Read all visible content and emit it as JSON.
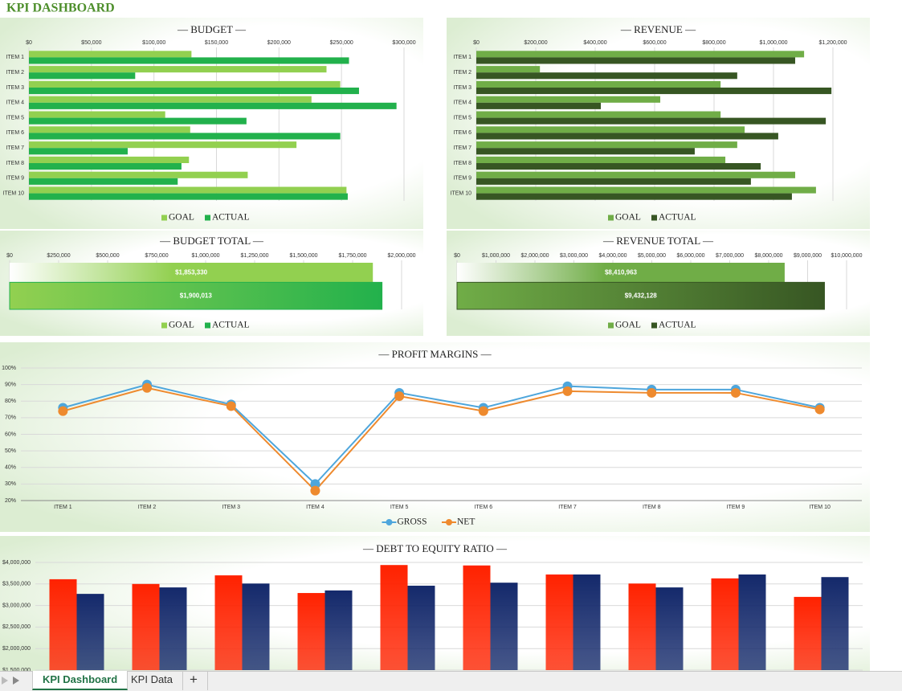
{
  "header": {
    "title": "KPI DASHBOARD"
  },
  "chart_data": [
    {
      "type": "hbar",
      "title": "— BUDGET —",
      "categories": [
        "ITEM 1",
        "ITEM 2",
        "ITEM 3",
        "ITEM 4",
        "ITEM 5",
        "ITEM 6",
        "ITEM 7",
        "ITEM 8",
        "ITEM 9",
        "ITEM 10"
      ],
      "series": [
        {
          "name": "GOAL",
          "color": "#92d050",
          "values": [
            130000,
            238000,
            249000,
            226000,
            109000,
            129000,
            214000,
            128000,
            175000,
            254000
          ]
        },
        {
          "name": "ACTUAL",
          "color": "#22b14c",
          "values": [
            256000,
            85000,
            264000,
            294000,
            174000,
            249000,
            79000,
            122000,
            119000,
            255000
          ]
        }
      ],
      "xlim": [
        0,
        300000
      ],
      "xticks": [
        {
          "value": 0,
          "label": "$0"
        },
        {
          "value": 50000,
          "label": "$50,000"
        },
        {
          "value": 100000,
          "label": "$100,000"
        },
        {
          "value": 150000,
          "label": "$150,000"
        },
        {
          "value": 200000,
          "label": "$200,000"
        },
        {
          "value": 250000,
          "label": "$250,000"
        },
        {
          "value": 300000,
          "label": "$300,000"
        }
      ],
      "grid": true,
      "legend": "bottom"
    },
    {
      "type": "hbar",
      "title": "— REVENUE —",
      "categories": [
        "ITEM 1",
        "ITEM 2",
        "ITEM 3",
        "ITEM 4",
        "ITEM 5",
        "ITEM 6",
        "ITEM 7",
        "ITEM 8",
        "ITEM 9",
        "ITEM 10"
      ],
      "series": [
        {
          "name": "GOAL",
          "color": "#70ad47",
          "values": [
            1103000,
            214000,
            822000,
            619000,
            822000,
            903000,
            878000,
            838000,
            1073000,
            1143000
          ]
        },
        {
          "name": "ACTUAL",
          "color": "#375623",
          "values": [
            1073000,
            878000,
            1195000,
            419000,
            1176000,
            1016000,
            735000,
            957000,
            924000,
            1062000
          ]
        }
      ],
      "xlim": [
        0,
        1200000
      ],
      "xticks": [
        {
          "value": 0,
          "label": "$0"
        },
        {
          "value": 200000,
          "label": "$200,000"
        },
        {
          "value": 400000,
          "label": "$400,000"
        },
        {
          "value": 600000,
          "label": "$600,000"
        },
        {
          "value": 800000,
          "label": "$800,000"
        },
        {
          "value": 1000000,
          "label": "$1,000,000"
        },
        {
          "value": 1200000,
          "label": "$1,200,000"
        }
      ],
      "grid": true,
      "legend": "bottom"
    },
    {
      "type": "total",
      "title": "— BUDGET TOTAL —",
      "series": [
        {
          "name": "GOAL",
          "color": "#92d050",
          "values": [
            1853330
          ],
          "value_labels": [
            "$1,853,330"
          ]
        },
        {
          "name": "ACTUAL",
          "color": "#22b14c",
          "values": [
            1900013
          ],
          "value_labels": [
            "$1,900,013"
          ]
        }
      ],
      "xlim": [
        0,
        2000000
      ],
      "xticks": [
        {
          "value": 0,
          "label": "$0"
        },
        {
          "value": 250000,
          "label": "$250,000"
        },
        {
          "value": 500000,
          "label": "$500,000"
        },
        {
          "value": 750000,
          "label": "$750,000"
        },
        {
          "value": 1000000,
          "label": "$1,000,000"
        },
        {
          "value": 1250000,
          "label": "$1,250,000"
        },
        {
          "value": 1500000,
          "label": "$1,500,000"
        },
        {
          "value": 1750000,
          "label": "$1,750,000"
        },
        {
          "value": 2000000,
          "label": "$2,000,000"
        }
      ],
      "legend": "bottom"
    },
    {
      "type": "total",
      "title": "— REVENUE TOTAL —",
      "series": [
        {
          "name": "GOAL",
          "color": "#70ad47",
          "values": [
            8410963
          ],
          "value_labels": [
            "$8,410,963"
          ]
        },
        {
          "name": "ACTUAL",
          "color": "#375623",
          "values": [
            9432128
          ],
          "value_labels": [
            "$9,432,128"
          ]
        }
      ],
      "xlim": [
        0,
        10000000
      ],
      "xticks": [
        {
          "value": 0,
          "label": "$0"
        },
        {
          "value": 1000000,
          "label": "$1,000,000"
        },
        {
          "value": 2000000,
          "label": "$2,000,000"
        },
        {
          "value": 3000000,
          "label": "$3,000,000"
        },
        {
          "value": 4000000,
          "label": "$4,000,000"
        },
        {
          "value": 5000000,
          "label": "$5,000,000"
        },
        {
          "value": 6000000,
          "label": "$6,000,000"
        },
        {
          "value": 7000000,
          "label": "$7,000,000"
        },
        {
          "value": 8000000,
          "label": "$8,000,000"
        },
        {
          "value": 9000000,
          "label": "$9,000,000"
        },
        {
          "value": 10000000,
          "label": "$10,000,000"
        }
      ],
      "legend": "bottom"
    },
    {
      "type": "line",
      "title": "— PROFIT MARGINS —",
      "categories": [
        "ITEM 1",
        "ITEM 2",
        "ITEM 3",
        "ITEM 4",
        "ITEM 5",
        "ITEM 6",
        "ITEM 7",
        "ITEM 8",
        "ITEM 9",
        "ITEM 10"
      ],
      "series": [
        {
          "name": "GROSS",
          "color": "#4ea6dc",
          "values": [
            76,
            90,
            78,
            30,
            85,
            76,
            89,
            87,
            87,
            76
          ]
        },
        {
          "name": "NET",
          "color": "#ee8a2e",
          "values": [
            74,
            88,
            77,
            26,
            83,
            74,
            86,
            85,
            85,
            75
          ]
        }
      ],
      "ylim": [
        20,
        100
      ],
      "yticks": [
        {
          "value": 20,
          "label": "20%"
        },
        {
          "value": 30,
          "label": "30%"
        },
        {
          "value": 40,
          "label": "40%"
        },
        {
          "value": 50,
          "label": "50%"
        },
        {
          "value": 60,
          "label": "60%"
        },
        {
          "value": 70,
          "label": "70%"
        },
        {
          "value": 80,
          "label": "80%"
        },
        {
          "value": 90,
          "label": "90%"
        },
        {
          "value": 100,
          "label": "100%"
        }
      ],
      "grid": true,
      "legend": "bottom"
    },
    {
      "type": "bar",
      "title": "— DEBT TO EQUITY RATIO —",
      "series": [
        {
          "color": "#ff2200",
          "values": [
            3610000,
            3500000,
            3700000,
            3290000,
            3940000,
            3930000,
            3720000,
            3510000,
            3630000,
            3200000
          ]
        },
        {
          "color": "#14296b",
          "values": [
            3270000,
            3420000,
            3510000,
            3350000,
            3460000,
            3530000,
            3720000,
            3420000,
            3720000,
            3660000
          ]
        }
      ],
      "ylim": [
        1500000,
        4000000
      ],
      "yticks": [
        {
          "value": 1500000,
          "label": "$1,500,000"
        },
        {
          "value": 2000000,
          "label": "$2,000,000"
        },
        {
          "value": 2500000,
          "label": "$2,500,000"
        },
        {
          "value": 3000000,
          "label": "$3,000,000"
        },
        {
          "value": 3500000,
          "label": "$3,500,000"
        },
        {
          "value": 4000000,
          "label": "$4,000,000"
        }
      ],
      "grid": true
    }
  ],
  "tabs": [
    "KPI Dashboard",
    "KPI Data",
    "+"
  ]
}
